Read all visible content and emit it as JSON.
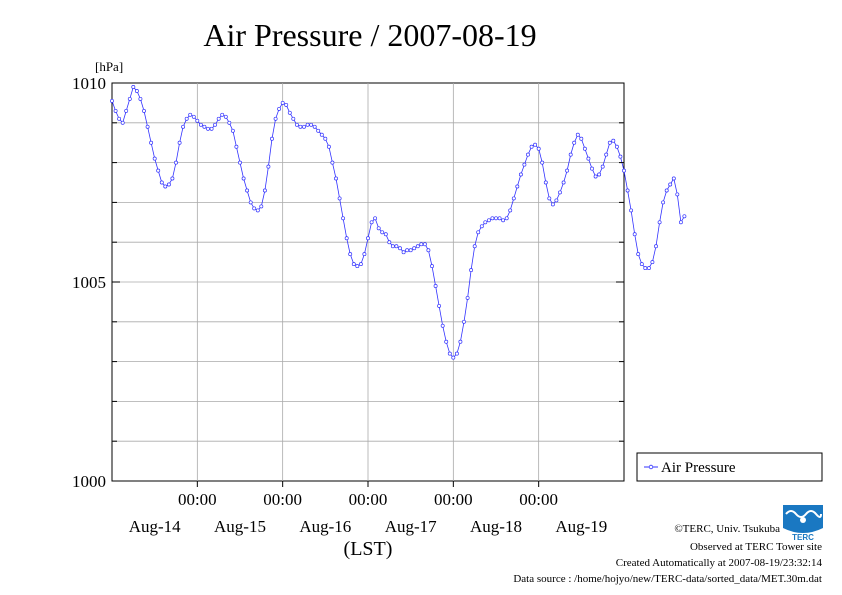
{
  "chart_data": {
    "type": "line",
    "title": "Air Pressure / 2007-08-19",
    "yunit": "[hPa]",
    "ylim": [
      1000,
      1010
    ],
    "yticks": [
      1000,
      1005,
      1010
    ],
    "ytick_labels": [
      "1000",
      "1005",
      "1010"
    ],
    "xlabel": "(LST)",
    "time_labels": [
      "00:00",
      "00:00",
      "00:00",
      "00:00",
      "00:00"
    ],
    "date_labels": [
      "Aug-14",
      "Aug-15",
      "Aug-16",
      "Aug-17",
      "Aug-18",
      "Aug-19"
    ],
    "grid": true,
    "legend_position": "right",
    "series": [
      {
        "name": "Air Pressure",
        "color": "#3333ff",
        "x_hours_start": 0,
        "x_hours_step": 1,
        "values": [
          1009.55,
          1009.3,
          1009.1,
          1009.0,
          1009.3,
          1009.6,
          1009.9,
          1009.8,
          1009.6,
          1009.3,
          1008.9,
          1008.5,
          1008.1,
          1007.8,
          1007.5,
          1007.4,
          1007.45,
          1007.6,
          1008.0,
          1008.5,
          1008.9,
          1009.1,
          1009.2,
          1009.15,
          1009.05,
          1008.95,
          1008.9,
          1008.85,
          1008.85,
          1008.95,
          1009.1,
          1009.2,
          1009.15,
          1009.0,
          1008.8,
          1008.4,
          1008.0,
          1007.6,
          1007.3,
          1007.0,
          1006.85,
          1006.8,
          1006.9,
          1007.3,
          1007.9,
          1008.6,
          1009.1,
          1009.35,
          1009.5,
          1009.45,
          1009.25,
          1009.1,
          1008.95,
          1008.9,
          1008.9,
          1008.95,
          1008.95,
          1008.9,
          1008.8,
          1008.7,
          1008.6,
          1008.4,
          1008.0,
          1007.6,
          1007.1,
          1006.6,
          1006.1,
          1005.7,
          1005.45,
          1005.4,
          1005.45,
          1005.7,
          1006.1,
          1006.5,
          1006.6,
          1006.35,
          1006.25,
          1006.2,
          1006.0,
          1005.9,
          1005.9,
          1005.85,
          1005.75,
          1005.8,
          1005.8,
          1005.85,
          1005.9,
          1005.95,
          1005.95,
          1005.8,
          1005.4,
          1004.9,
          1004.4,
          1003.9,
          1003.5,
          1003.2,
          1003.1,
          1003.2,
          1003.5,
          1004.0,
          1004.6,
          1005.3,
          1005.9,
          1006.25,
          1006.4,
          1006.5,
          1006.55,
          1006.6,
          1006.6,
          1006.6,
          1006.55,
          1006.6,
          1006.8,
          1007.1,
          1007.4,
          1007.7,
          1007.95,
          1008.2,
          1008.4,
          1008.45,
          1008.35,
          1008.0,
          1007.5,
          1007.1,
          1006.95,
          1007.05,
          1007.25,
          1007.5,
          1007.8,
          1008.2,
          1008.5,
          1008.7,
          1008.6,
          1008.35,
          1008.1,
          1007.85,
          1007.65,
          1007.7,
          1007.9,
          1008.2,
          1008.5,
          1008.55,
          1008.4,
          1008.15,
          1007.8,
          1007.3,
          1006.8,
          1006.2,
          1005.7,
          1005.45,
          1005.35,
          1005.35,
          1005.5,
          1005.9,
          1006.5,
          1007.0,
          1007.3,
          1007.45,
          1007.6,
          1007.2,
          1006.5,
          1006.65
        ]
      }
    ]
  },
  "footer": {
    "copyright": "©TERC, Univ. Tsukuba",
    "observed": "Observed at TERC Tower site",
    "created": "Created Automatically at 2007-08-19/23:32:14",
    "source": "Data source : /home/hojyo/new/TERC-data/sorted_data/MET.30m.dat"
  },
  "logo": {
    "text": "TERC",
    "color": "#1a78c2"
  }
}
